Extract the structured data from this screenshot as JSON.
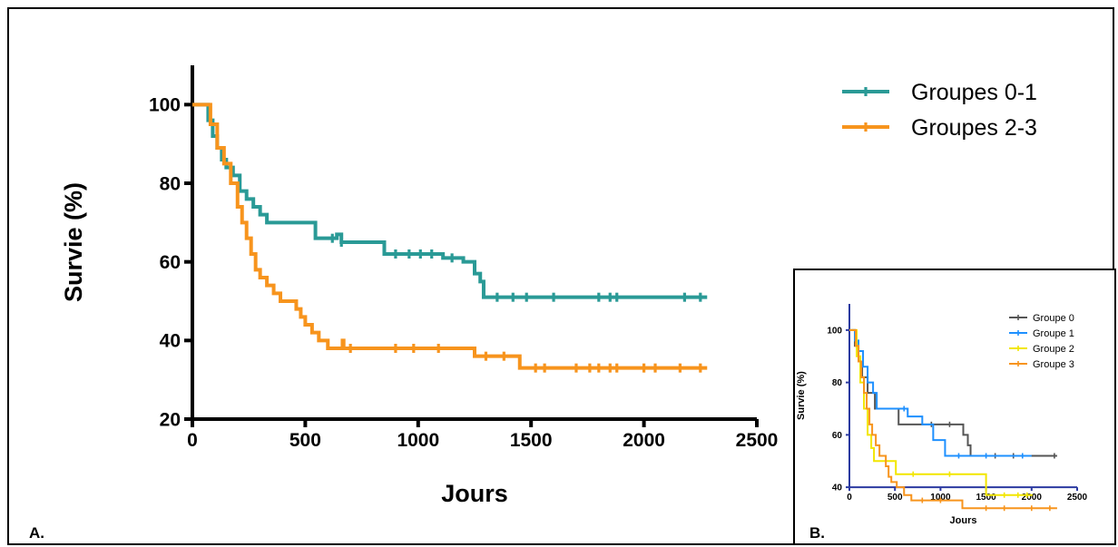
{
  "panel_labels": {
    "a": "A.",
    "b": "B."
  },
  "chart_data": [
    {
      "type": "line",
      "subtype": "kaplan-meier-step",
      "title": "",
      "xlabel": "Jours",
      "ylabel": "Survie (%)",
      "xlim": [
        0,
        2500
      ],
      "ylim": [
        20,
        110
      ],
      "x_ticks": [
        0,
        500,
        1000,
        1500,
        2000,
        2500
      ],
      "y_ticks": [
        20,
        40,
        60,
        80,
        100
      ],
      "grid": false,
      "legend_position": "top-right",
      "series": [
        {
          "name": "Groupes 0-1",
          "color": "#2a9a96",
          "points": [
            [
              0,
              100
            ],
            [
              55,
              100
            ],
            [
              70,
              96
            ],
            [
              90,
              92
            ],
            [
              110,
              89
            ],
            [
              130,
              86
            ],
            [
              150,
              84
            ],
            [
              180,
              82
            ],
            [
              210,
              78
            ],
            [
              240,
              76
            ],
            [
              270,
              74
            ],
            [
              300,
              72
            ],
            [
              330,
              70
            ],
            [
              540,
              70
            ],
            [
              545,
              66
            ],
            [
              620,
              66
            ],
            [
              640,
              67
            ],
            [
              660,
              65
            ],
            [
              840,
              65
            ],
            [
              850,
              62
            ],
            [
              1100,
              62
            ],
            [
              1110,
              61
            ],
            [
              1190,
              61
            ],
            [
              1200,
              60
            ],
            [
              1240,
              60
            ],
            [
              1250,
              57
            ],
            [
              1275,
              55
            ],
            [
              1290,
              51
            ],
            [
              2280,
              51
            ]
          ],
          "censored": [
            [
              620,
              66
            ],
            [
              660,
              65
            ],
            [
              900,
              62
            ],
            [
              960,
              62
            ],
            [
              1010,
              62
            ],
            [
              1060,
              62
            ],
            [
              1150,
              61
            ],
            [
              1350,
              51
            ],
            [
              1420,
              51
            ],
            [
              1480,
              51
            ],
            [
              1600,
              51
            ],
            [
              1800,
              51
            ],
            [
              1850,
              51
            ],
            [
              1880,
              51
            ],
            [
              2180,
              51
            ],
            [
              2250,
              51
            ]
          ]
        },
        {
          "name": "Groupes 2-3",
          "color": "#f7941d",
          "points": [
            [
              0,
              100
            ],
            [
              55,
              100
            ],
            [
              80,
              95
            ],
            [
              110,
              89
            ],
            [
              140,
              85
            ],
            [
              170,
              80
            ],
            [
              200,
              74
            ],
            [
              220,
              70
            ],
            [
              240,
              66
            ],
            [
              260,
              62
            ],
            [
              280,
              58
            ],
            [
              300,
              56
            ],
            [
              330,
              54
            ],
            [
              360,
              52
            ],
            [
              390,
              50
            ],
            [
              450,
              50
            ],
            [
              460,
              48
            ],
            [
              480,
              46
            ],
            [
              500,
              44
            ],
            [
              530,
              42
            ],
            [
              560,
              40
            ],
            [
              600,
              38
            ],
            [
              660,
              38
            ],
            [
              665,
              40
            ],
            [
              670,
              38
            ],
            [
              1240,
              38
            ],
            [
              1250,
              36
            ],
            [
              1445,
              36
            ],
            [
              1450,
              33
            ],
            [
              2280,
              33
            ]
          ],
          "censored": [
            [
              700,
              38
            ],
            [
              900,
              38
            ],
            [
              980,
              38
            ],
            [
              1090,
              38
            ],
            [
              1300,
              36
            ],
            [
              1380,
              36
            ],
            [
              1520,
              33
            ],
            [
              1560,
              33
            ],
            [
              1700,
              33
            ],
            [
              1760,
              33
            ],
            [
              1800,
              33
            ],
            [
              1850,
              33
            ],
            [
              1880,
              33
            ],
            [
              2000,
              33
            ],
            [
              2050,
              33
            ],
            [
              2160,
              33
            ],
            [
              2250,
              33
            ]
          ]
        }
      ]
    },
    {
      "type": "line",
      "subtype": "kaplan-meier-step",
      "title": "",
      "xlabel": "Jours",
      "ylabel": "Survie (%)",
      "xlim": [
        0,
        2500
      ],
      "ylim": [
        30,
        110
      ],
      "x_ticks": [
        0,
        500,
        1000,
        1500,
        2000,
        2500
      ],
      "y_ticks": [
        40,
        60,
        80,
        100
      ],
      "grid": false,
      "legend_position": "top-right",
      "series": [
        {
          "name": "Groupe 0",
          "color": "#555555",
          "points": [
            [
              0,
              100
            ],
            [
              60,
              94
            ],
            [
              100,
              88
            ],
            [
              140,
              82
            ],
            [
              200,
              76
            ],
            [
              280,
              70
            ],
            [
              530,
              70
            ],
            [
              540,
              64
            ],
            [
              1220,
              64
            ],
            [
              1250,
              60
            ],
            [
              1300,
              56
            ],
            [
              1330,
              52
            ],
            [
              2280,
              52
            ]
          ],
          "censored": [
            [
              900,
              64
            ],
            [
              1100,
              64
            ],
            [
              1600,
              52
            ],
            [
              1800,
              52
            ],
            [
              2250,
              52
            ]
          ]
        },
        {
          "name": "Groupe 1",
          "color": "#1e90ff",
          "points": [
            [
              0,
              100
            ],
            [
              60,
              96
            ],
            [
              100,
              92
            ],
            [
              150,
              86
            ],
            [
              200,
              80
            ],
            [
              260,
              76
            ],
            [
              300,
              70
            ],
            [
              620,
              70
            ],
            [
              640,
              67
            ],
            [
              800,
              64
            ],
            [
              920,
              58
            ],
            [
              1040,
              58
            ],
            [
              1050,
              52
            ],
            [
              2000,
              52
            ]
          ],
          "censored": [
            [
              600,
              70
            ],
            [
              1200,
              52
            ],
            [
              1500,
              52
            ],
            [
              1900,
              52
            ]
          ]
        },
        {
          "name": "Groupe 2",
          "color": "#f2e600",
          "points": [
            [
              0,
              100
            ],
            [
              80,
              90
            ],
            [
              120,
              80
            ],
            [
              160,
              70
            ],
            [
              200,
              60
            ],
            [
              240,
              55
            ],
            [
              270,
              50
            ],
            [
              500,
              50
            ],
            [
              510,
              45
            ],
            [
              1480,
              45
            ],
            [
              1500,
              37
            ],
            [
              2010,
              37
            ]
          ],
          "censored": [
            [
              700,
              45
            ],
            [
              1100,
              45
            ],
            [
              1700,
              37
            ],
            [
              1850,
              37
            ],
            [
              1950,
              37
            ]
          ]
        },
        {
          "name": "Groupe 3",
          "color": "#f7941d",
          "points": [
            [
              0,
              100
            ],
            [
              70,
              94
            ],
            [
              100,
              88
            ],
            [
              130,
              82
            ],
            [
              160,
              76
            ],
            [
              190,
              70
            ],
            [
              220,
              64
            ],
            [
              250,
              60
            ],
            [
              290,
              56
            ],
            [
              330,
              52
            ],
            [
              400,
              48
            ],
            [
              430,
              44
            ],
            [
              460,
              42
            ],
            [
              520,
              40
            ],
            [
              600,
              37
            ],
            [
              680,
              35
            ],
            [
              1220,
              35
            ],
            [
              1240,
              32
            ],
            [
              2280,
              32
            ]
          ],
          "censored": [
            [
              800,
              35
            ],
            [
              1000,
              35
            ],
            [
              1500,
              32
            ],
            [
              1700,
              32
            ],
            [
              2000,
              32
            ],
            [
              2200,
              32
            ]
          ]
        }
      ]
    }
  ]
}
